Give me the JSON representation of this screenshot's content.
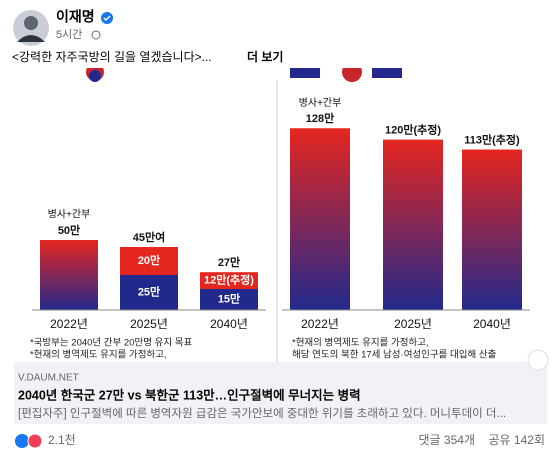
{
  "post": {
    "author": "이재명",
    "time": "5시간",
    "text": "<강력한 자주국방의 길을 열겠습니다>...",
    "more": "더 보기"
  },
  "image": {
    "left": {
      "bars": [
        {
          "year": "2022년",
          "top_label": "병사+간부",
          "total": {
            "value": 50,
            "label": "50만"
          }
        },
        {
          "year": "2025년",
          "total": {
            "value": 45,
            "label": "45만여"
          },
          "segments": [
            {
              "value": 20,
              "label": "20만"
            },
            {
              "value": 25,
              "label": "25만"
            }
          ]
        },
        {
          "year": "2040년",
          "total": {
            "value": 27,
            "label": "27만"
          },
          "segments": [
            {
              "value": 12,
              "label": "12만(추정)"
            },
            {
              "value": 15,
              "label": "15만"
            }
          ]
        }
      ],
      "notes": [
        "*국방부는 2040년 간부 20만명 유지 목표",
        "*현재의 병역제도 유지를 가정하고,"
      ]
    },
    "right": {
      "bars": [
        {
          "year": "2022년",
          "top_label": "병사+간부",
          "total": {
            "value": 128,
            "label": "128만"
          }
        },
        {
          "year": "2025년",
          "total": {
            "value": 120,
            "label": "120만(추정)"
          }
        },
        {
          "year": "2040년",
          "total": {
            "value": 113,
            "label": "113만(추정)"
          }
        }
      ],
      "notes": [
        "*현재의 병역제도 유지를 가정하고,",
        "해당 연도의 북한 17세 남성·여성인구를 대입해 산출"
      ]
    }
  },
  "link": {
    "domain": "V.DAUM.NET",
    "title": "2040년 한국군 27만 vs 북한군 113만…인구절벽에 무너지는 병력",
    "description": "[편집자주] 인구절벽에 따른 병역자원 급감은 국가안보에 중대한 위기를 초래하고 있다. 머니투데이 더..."
  },
  "footer": {
    "reactions": "2.1천",
    "comments": "댓글 354개",
    "shares": "공유 142회"
  }
}
